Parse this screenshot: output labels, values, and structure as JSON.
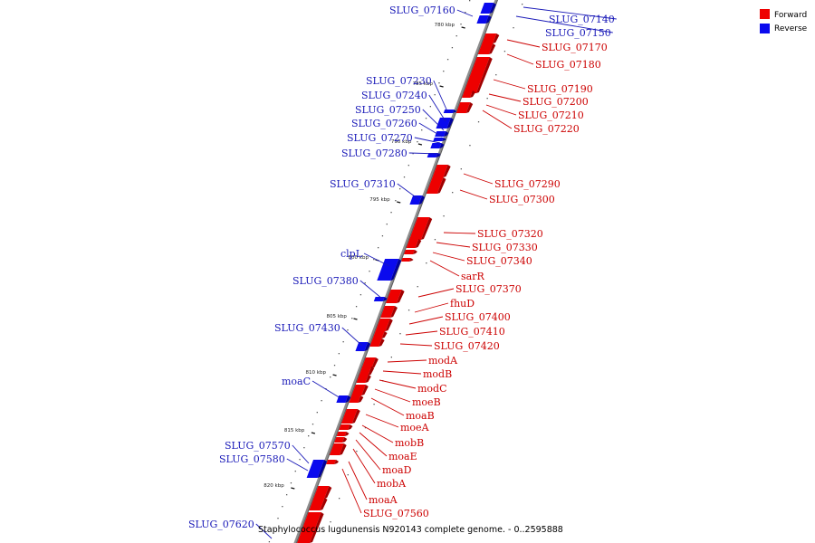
{
  "caption": "Staphylococcus lugdunensis N920143 complete genome. - 0..2595888",
  "legend": {
    "forward_label": "Forward",
    "reverse_label": "Reverse",
    "forward_color": "#ee0000",
    "reverse_color": "#0a0aee"
  },
  "colors": {
    "axis": "#909090",
    "forward": "#ee0000",
    "reverse": "#0a0aee",
    "label_line_fwd": "#cc0000",
    "label_line_rev": "#1a1ab8"
  },
  "kbp_ticks": [
    "780 kbp",
    "785 kbp",
    "790 kbp",
    "795 kbp",
    "800 kbp",
    "805 kbp",
    "810 kbp",
    "815 kbp",
    "820 kbp"
  ],
  "genes_reverse": [
    "SLUG_07160",
    "SLUG_07140",
    "SLUG_07150",
    "SLUG_07230",
    "SLUG_07240",
    "SLUG_07250",
    "SLUG_07260",
    "SLUG_07270",
    "SLUG_07280",
    "SLUG_07310",
    "clpL",
    "SLUG_07380",
    "SLUG_07430",
    "moaC",
    "SLUG_07570",
    "SLUG_07580",
    "SLUG_07620"
  ],
  "genes_forward": [
    "SLUG_07170",
    "SLUG_07180",
    "SLUG_07190",
    "SLUG_07200",
    "SLUG_07210",
    "SLUG_07220",
    "SLUG_07290",
    "SLUG_07300",
    "SLUG_07320",
    "SLUG_07330",
    "SLUG_07340",
    "sarR",
    "SLUG_07370",
    "fhuD",
    "SLUG_07400",
    "SLUG_07410",
    "SLUG_07420",
    "modA",
    "modB",
    "modC",
    "moeB",
    "moaB",
    "moeA",
    "mobB",
    "moaE",
    "moaD",
    "mobA",
    "moaA",
    "SLUG_07560"
  ]
}
